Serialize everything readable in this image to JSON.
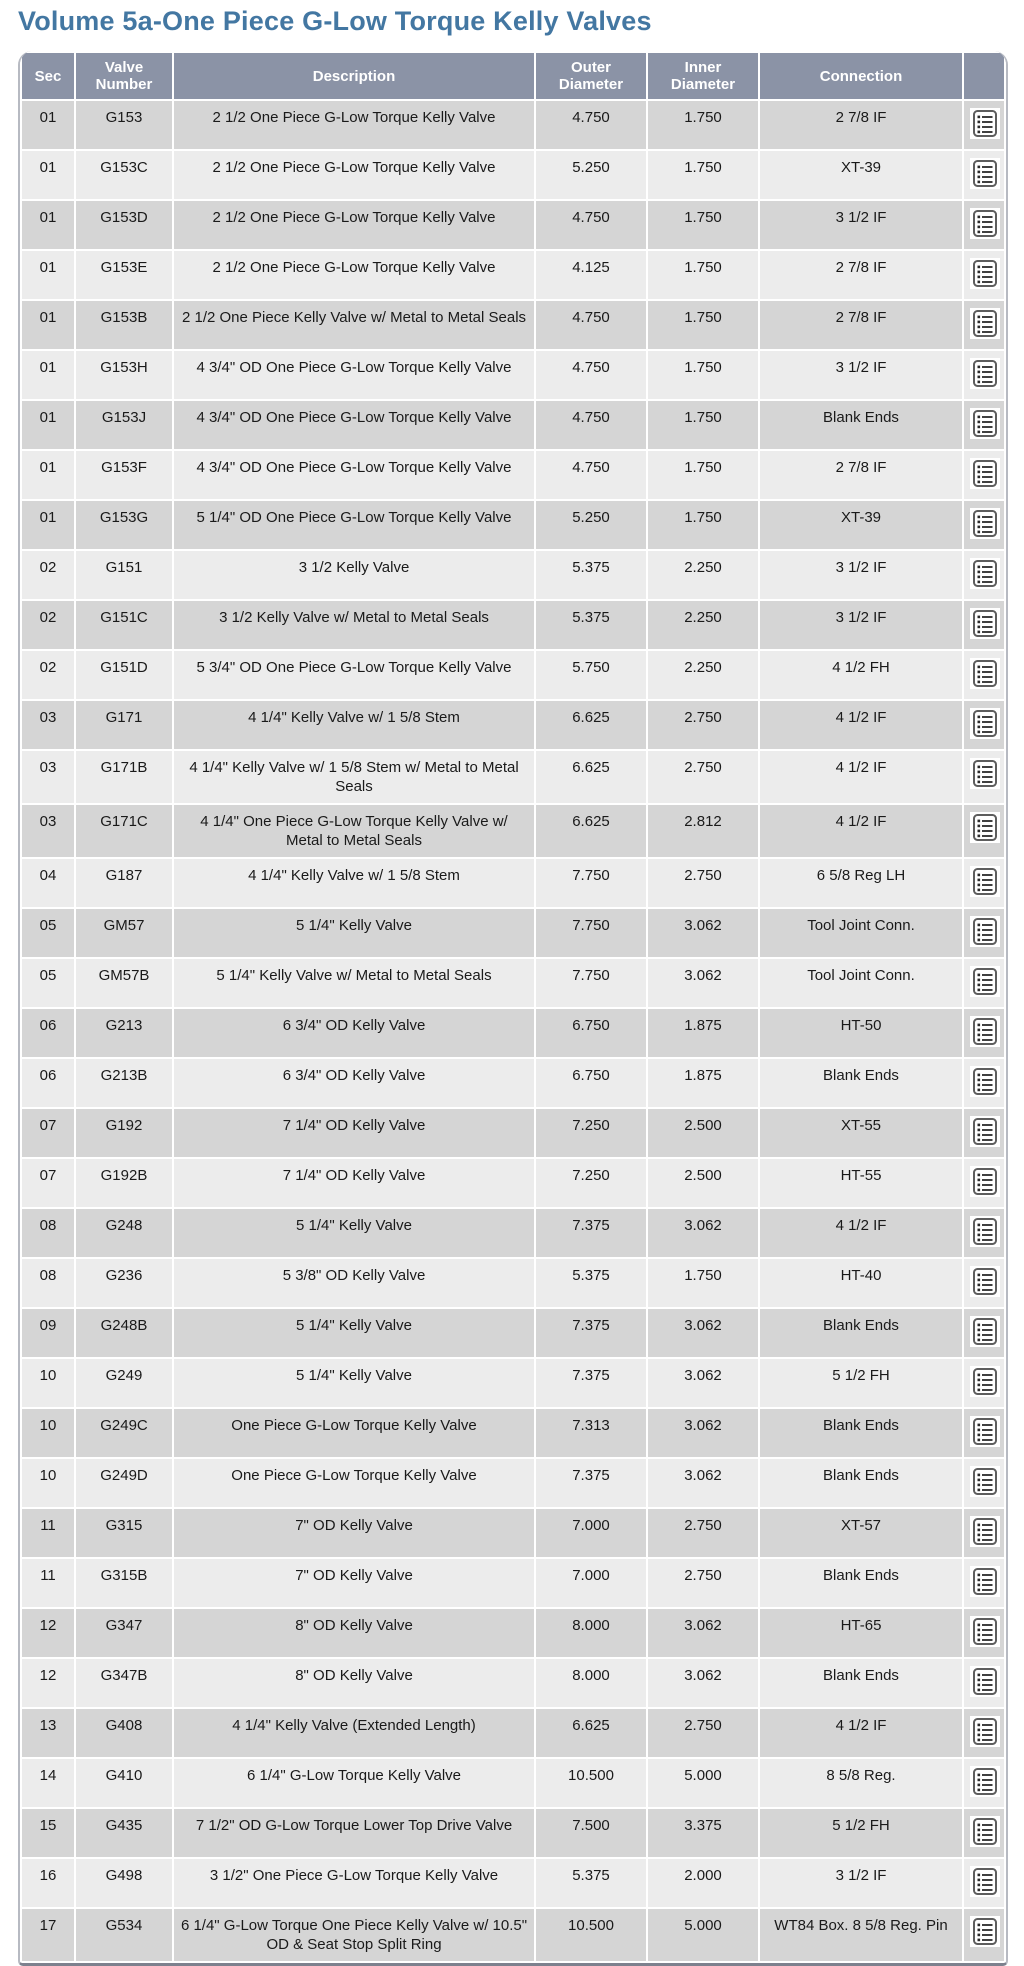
{
  "page": {
    "title": "Volume 5a-One Piece G-Low Torque Kelly Valves"
  },
  "colors": {
    "title_text": "#4377a2",
    "header_bg": "#8b93a6",
    "header_text": "#ffffff",
    "row_odd_bg": "#d5d5d5",
    "row_even_bg": "#ececec",
    "grid_separator": "#ffffff"
  },
  "table": {
    "columns": [
      {
        "key": "sec",
        "label": "Sec"
      },
      {
        "key": "valve_number",
        "label": "Valve Number"
      },
      {
        "key": "description",
        "label": "Description"
      },
      {
        "key": "outer_diameter",
        "label": "Outer Diameter"
      },
      {
        "key": "inner_diameter",
        "label": "Inner Diameter"
      },
      {
        "key": "connection",
        "label": "Connection"
      },
      {
        "key": "action",
        "label": ""
      }
    ],
    "row_action_icon": "list-icon",
    "rows": [
      {
        "sec": "01",
        "valve_number": "G153",
        "description": "2 1/2 One Piece G-Low Torque Kelly Valve",
        "outer_diameter": "4.750",
        "inner_diameter": "1.750",
        "connection": "2 7/8 IF"
      },
      {
        "sec": "01",
        "valve_number": "G153C",
        "description": "2 1/2 One Piece G-Low Torque Kelly Valve",
        "outer_diameter": "5.250",
        "inner_diameter": "1.750",
        "connection": "XT-39"
      },
      {
        "sec": "01",
        "valve_number": "G153D",
        "description": "2 1/2 One Piece G-Low Torque Kelly Valve",
        "outer_diameter": "4.750",
        "inner_diameter": "1.750",
        "connection": "3 1/2 IF"
      },
      {
        "sec": "01",
        "valve_number": "G153E",
        "description": "2 1/2 One Piece G-Low Torque Kelly Valve",
        "outer_diameter": "4.125",
        "inner_diameter": "1.750",
        "connection": "2 7/8 IF"
      },
      {
        "sec": "01",
        "valve_number": "G153B",
        "description": "2 1/2 One Piece Kelly Valve w/ Metal to Metal Seals",
        "outer_diameter": "4.750",
        "inner_diameter": "1.750",
        "connection": "2 7/8 IF"
      },
      {
        "sec": "01",
        "valve_number": "G153H",
        "description": "4 3/4\" OD One Piece G-Low Torque Kelly Valve",
        "outer_diameter": "4.750",
        "inner_diameter": "1.750",
        "connection": "3 1/2 IF"
      },
      {
        "sec": "01",
        "valve_number": "G153J",
        "description": "4 3/4\" OD One Piece G-Low Torque Kelly Valve",
        "outer_diameter": "4.750",
        "inner_diameter": "1.750",
        "connection": "Blank Ends"
      },
      {
        "sec": "01",
        "valve_number": "G153F",
        "description": "4 3/4\" OD One Piece G-Low Torque Kelly Valve",
        "outer_diameter": "4.750",
        "inner_diameter": "1.750",
        "connection": "2 7/8 IF"
      },
      {
        "sec": "01",
        "valve_number": "G153G",
        "description": "5 1/4\" OD One Piece G-Low Torque Kelly Valve",
        "outer_diameter": "5.250",
        "inner_diameter": "1.750",
        "connection": "XT-39"
      },
      {
        "sec": "02",
        "valve_number": "G151",
        "description": "3 1/2 Kelly Valve",
        "outer_diameter": "5.375",
        "inner_diameter": "2.250",
        "connection": "3 1/2 IF"
      },
      {
        "sec": "02",
        "valve_number": "G151C",
        "description": "3 1/2 Kelly Valve w/ Metal to Metal Seals",
        "outer_diameter": "5.375",
        "inner_diameter": "2.250",
        "connection": "3 1/2 IF"
      },
      {
        "sec": "02",
        "valve_number": "G151D",
        "description": "5 3/4\" OD One Piece G-Low Torque Kelly Valve",
        "outer_diameter": "5.750",
        "inner_diameter": "2.250",
        "connection": "4 1/2 FH"
      },
      {
        "sec": "03",
        "valve_number": "G171",
        "description": "4 1/4\" Kelly Valve w/ 1 5/8 Stem",
        "outer_diameter": "6.625",
        "inner_diameter": "2.750",
        "connection": "4 1/2 IF"
      },
      {
        "sec": "03",
        "valve_number": "G171B",
        "description": "4 1/4\" Kelly Valve w/ 1 5/8 Stem w/ Metal to Metal Seals",
        "outer_diameter": "6.625",
        "inner_diameter": "2.750",
        "connection": "4 1/2 IF"
      },
      {
        "sec": "03",
        "valve_number": "G171C",
        "description": "4 1/4\" One Piece G-Low Torque Kelly Valve w/ Metal to Metal Seals",
        "outer_diameter": "6.625",
        "inner_diameter": "2.812",
        "connection": "4 1/2 IF"
      },
      {
        "sec": "04",
        "valve_number": "G187",
        "description": "4 1/4\" Kelly Valve w/ 1 5/8 Stem",
        "outer_diameter": "7.750",
        "inner_diameter": "2.750",
        "connection": "6 5/8 Reg LH"
      },
      {
        "sec": "05",
        "valve_number": "GM57",
        "description": "5 1/4\" Kelly Valve",
        "outer_diameter": "7.750",
        "inner_diameter": "3.062",
        "connection": "Tool Joint Conn."
      },
      {
        "sec": "05",
        "valve_number": "GM57B",
        "description": "5 1/4\" Kelly Valve w/ Metal to Metal Seals",
        "outer_diameter": "7.750",
        "inner_diameter": "3.062",
        "connection": "Tool Joint Conn."
      },
      {
        "sec": "06",
        "valve_number": "G213",
        "description": "6 3/4\" OD Kelly Valve",
        "outer_diameter": "6.750",
        "inner_diameter": "1.875",
        "connection": "HT-50"
      },
      {
        "sec": "06",
        "valve_number": "G213B",
        "description": "6 3/4\" OD Kelly Valve",
        "outer_diameter": "6.750",
        "inner_diameter": "1.875",
        "connection": "Blank Ends"
      },
      {
        "sec": "07",
        "valve_number": "G192",
        "description": "7 1/4\" OD Kelly Valve",
        "outer_diameter": "7.250",
        "inner_diameter": "2.500",
        "connection": "XT-55"
      },
      {
        "sec": "07",
        "valve_number": "G192B",
        "description": "7 1/4\" OD Kelly Valve",
        "outer_diameter": "7.250",
        "inner_diameter": "2.500",
        "connection": "HT-55"
      },
      {
        "sec": "08",
        "valve_number": "G248",
        "description": "5 1/4\" Kelly Valve",
        "outer_diameter": "7.375",
        "inner_diameter": "3.062",
        "connection": "4 1/2 IF"
      },
      {
        "sec": "08",
        "valve_number": "G236",
        "description": "5 3/8\" OD Kelly Valve",
        "outer_diameter": "5.375",
        "inner_diameter": "1.750",
        "connection": "HT-40"
      },
      {
        "sec": "09",
        "valve_number": "G248B",
        "description": "5 1/4\" Kelly Valve",
        "outer_diameter": "7.375",
        "inner_diameter": "3.062",
        "connection": "Blank Ends"
      },
      {
        "sec": "10",
        "valve_number": "G249",
        "description": "5 1/4\" Kelly Valve",
        "outer_diameter": "7.375",
        "inner_diameter": "3.062",
        "connection": "5 1/2 FH"
      },
      {
        "sec": "10",
        "valve_number": "G249C",
        "description": "One Piece G-Low Torque Kelly Valve",
        "outer_diameter": "7.313",
        "inner_diameter": "3.062",
        "connection": "Blank Ends"
      },
      {
        "sec": "10",
        "valve_number": "G249D",
        "description": "One Piece G-Low Torque Kelly Valve",
        "outer_diameter": "7.375",
        "inner_diameter": "3.062",
        "connection": "Blank Ends"
      },
      {
        "sec": "11",
        "valve_number": "G315",
        "description": "7\" OD Kelly Valve",
        "outer_diameter": "7.000",
        "inner_diameter": "2.750",
        "connection": "XT-57"
      },
      {
        "sec": "11",
        "valve_number": "G315B",
        "description": "7\" OD Kelly Valve",
        "outer_diameter": "7.000",
        "inner_diameter": "2.750",
        "connection": "Blank Ends"
      },
      {
        "sec": "12",
        "valve_number": "G347",
        "description": "8\" OD Kelly Valve",
        "outer_diameter": "8.000",
        "inner_diameter": "3.062",
        "connection": "HT-65"
      },
      {
        "sec": "12",
        "valve_number": "G347B",
        "description": "8\" OD Kelly Valve",
        "outer_diameter": "8.000",
        "inner_diameter": "3.062",
        "connection": "Blank Ends"
      },
      {
        "sec": "13",
        "valve_number": "G408",
        "description": "4 1/4\" Kelly Valve (Extended Length)",
        "outer_diameter": "6.625",
        "inner_diameter": "2.750",
        "connection": "4 1/2 IF"
      },
      {
        "sec": "14",
        "valve_number": "G410",
        "description": "6 1/4\" G-Low Torque Kelly Valve",
        "outer_diameter": "10.500",
        "inner_diameter": "5.000",
        "connection": "8 5/8 Reg."
      },
      {
        "sec": "15",
        "valve_number": "G435",
        "description": "7 1/2\" OD G-Low Torque Lower Top Drive Valve",
        "outer_diameter": "7.500",
        "inner_diameter": "3.375",
        "connection": "5 1/2 FH"
      },
      {
        "sec": "16",
        "valve_number": "G498",
        "description": "3 1/2\" One Piece G-Low Torque Kelly Valve",
        "outer_diameter": "5.375",
        "inner_diameter": "2.000",
        "connection": "3 1/2 IF"
      },
      {
        "sec": "17",
        "valve_number": "G534",
        "description": "6 1/4\" G-Low Torque One Piece Kelly Valve w/ 10.5\" OD & Seat Stop Split Ring",
        "outer_diameter": "10.500",
        "inner_diameter": "5.000",
        "connection": "WT84 Box. 8 5/8 Reg. Pin"
      }
    ]
  }
}
